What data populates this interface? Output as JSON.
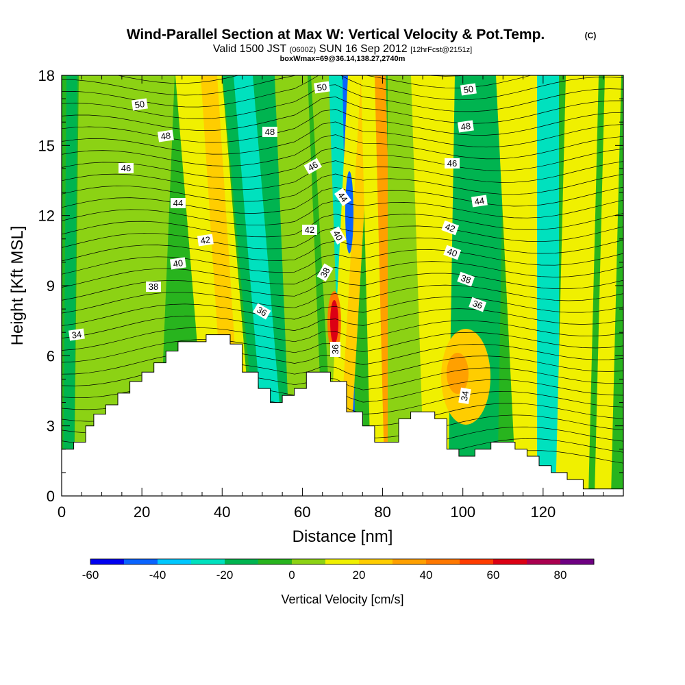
{
  "title": "Wind-Parallel Section at Max W: Vertical Velocity & Pot.Temp.",
  "title_mark": "(C)",
  "subtitle": {
    "part1": "Valid 1500 JST",
    "part2": "(0600Z)",
    "part3": "SUN 16 Sep 2012",
    "part4": "[12hrFcst@2151z]"
  },
  "subtitle2": "boxWmax=69@36.14,138.27,2740m",
  "chart_data": {
    "type": "heatmap",
    "xlabel": "Distance [nm]",
    "ylabel": "Height [Kft MSL]",
    "xlim": [
      0,
      140
    ],
    "ylim": [
      0,
      18
    ],
    "x_ticks": [
      "0",
      "20",
      "40",
      "60",
      "80",
      "100",
      "120"
    ],
    "y_ticks": [
      "0",
      "3",
      "6",
      "9",
      "12",
      "15",
      "18"
    ],
    "colorbar": {
      "label": "Vertical Velocity [cm/s]",
      "ticks": [
        "-60",
        "-40",
        "-20",
        "0",
        "20",
        "40",
        "60",
        "80"
      ],
      "colors": [
        "#0000f0",
        "#0a64ff",
        "#00c8ff",
        "#00e1be",
        "#00b450",
        "#28b41e",
        "#8cd214",
        "#f0f000",
        "#ffcd00",
        "#ffa000",
        "#ff7800",
        "#ff3c00",
        "#dc0014",
        "#aa0050",
        "#6e0082"
      ]
    },
    "contour_labels": [
      "50",
      "50",
      "50",
      "48",
      "48",
      "48",
      "46",
      "46",
      "46",
      "44",
      "44",
      "44",
      "42",
      "42",
      "42",
      "40",
      "40",
      "40",
      "38",
      "38",
      "38",
      "36",
      "36",
      "36",
      "34",
      "34"
    ]
  }
}
